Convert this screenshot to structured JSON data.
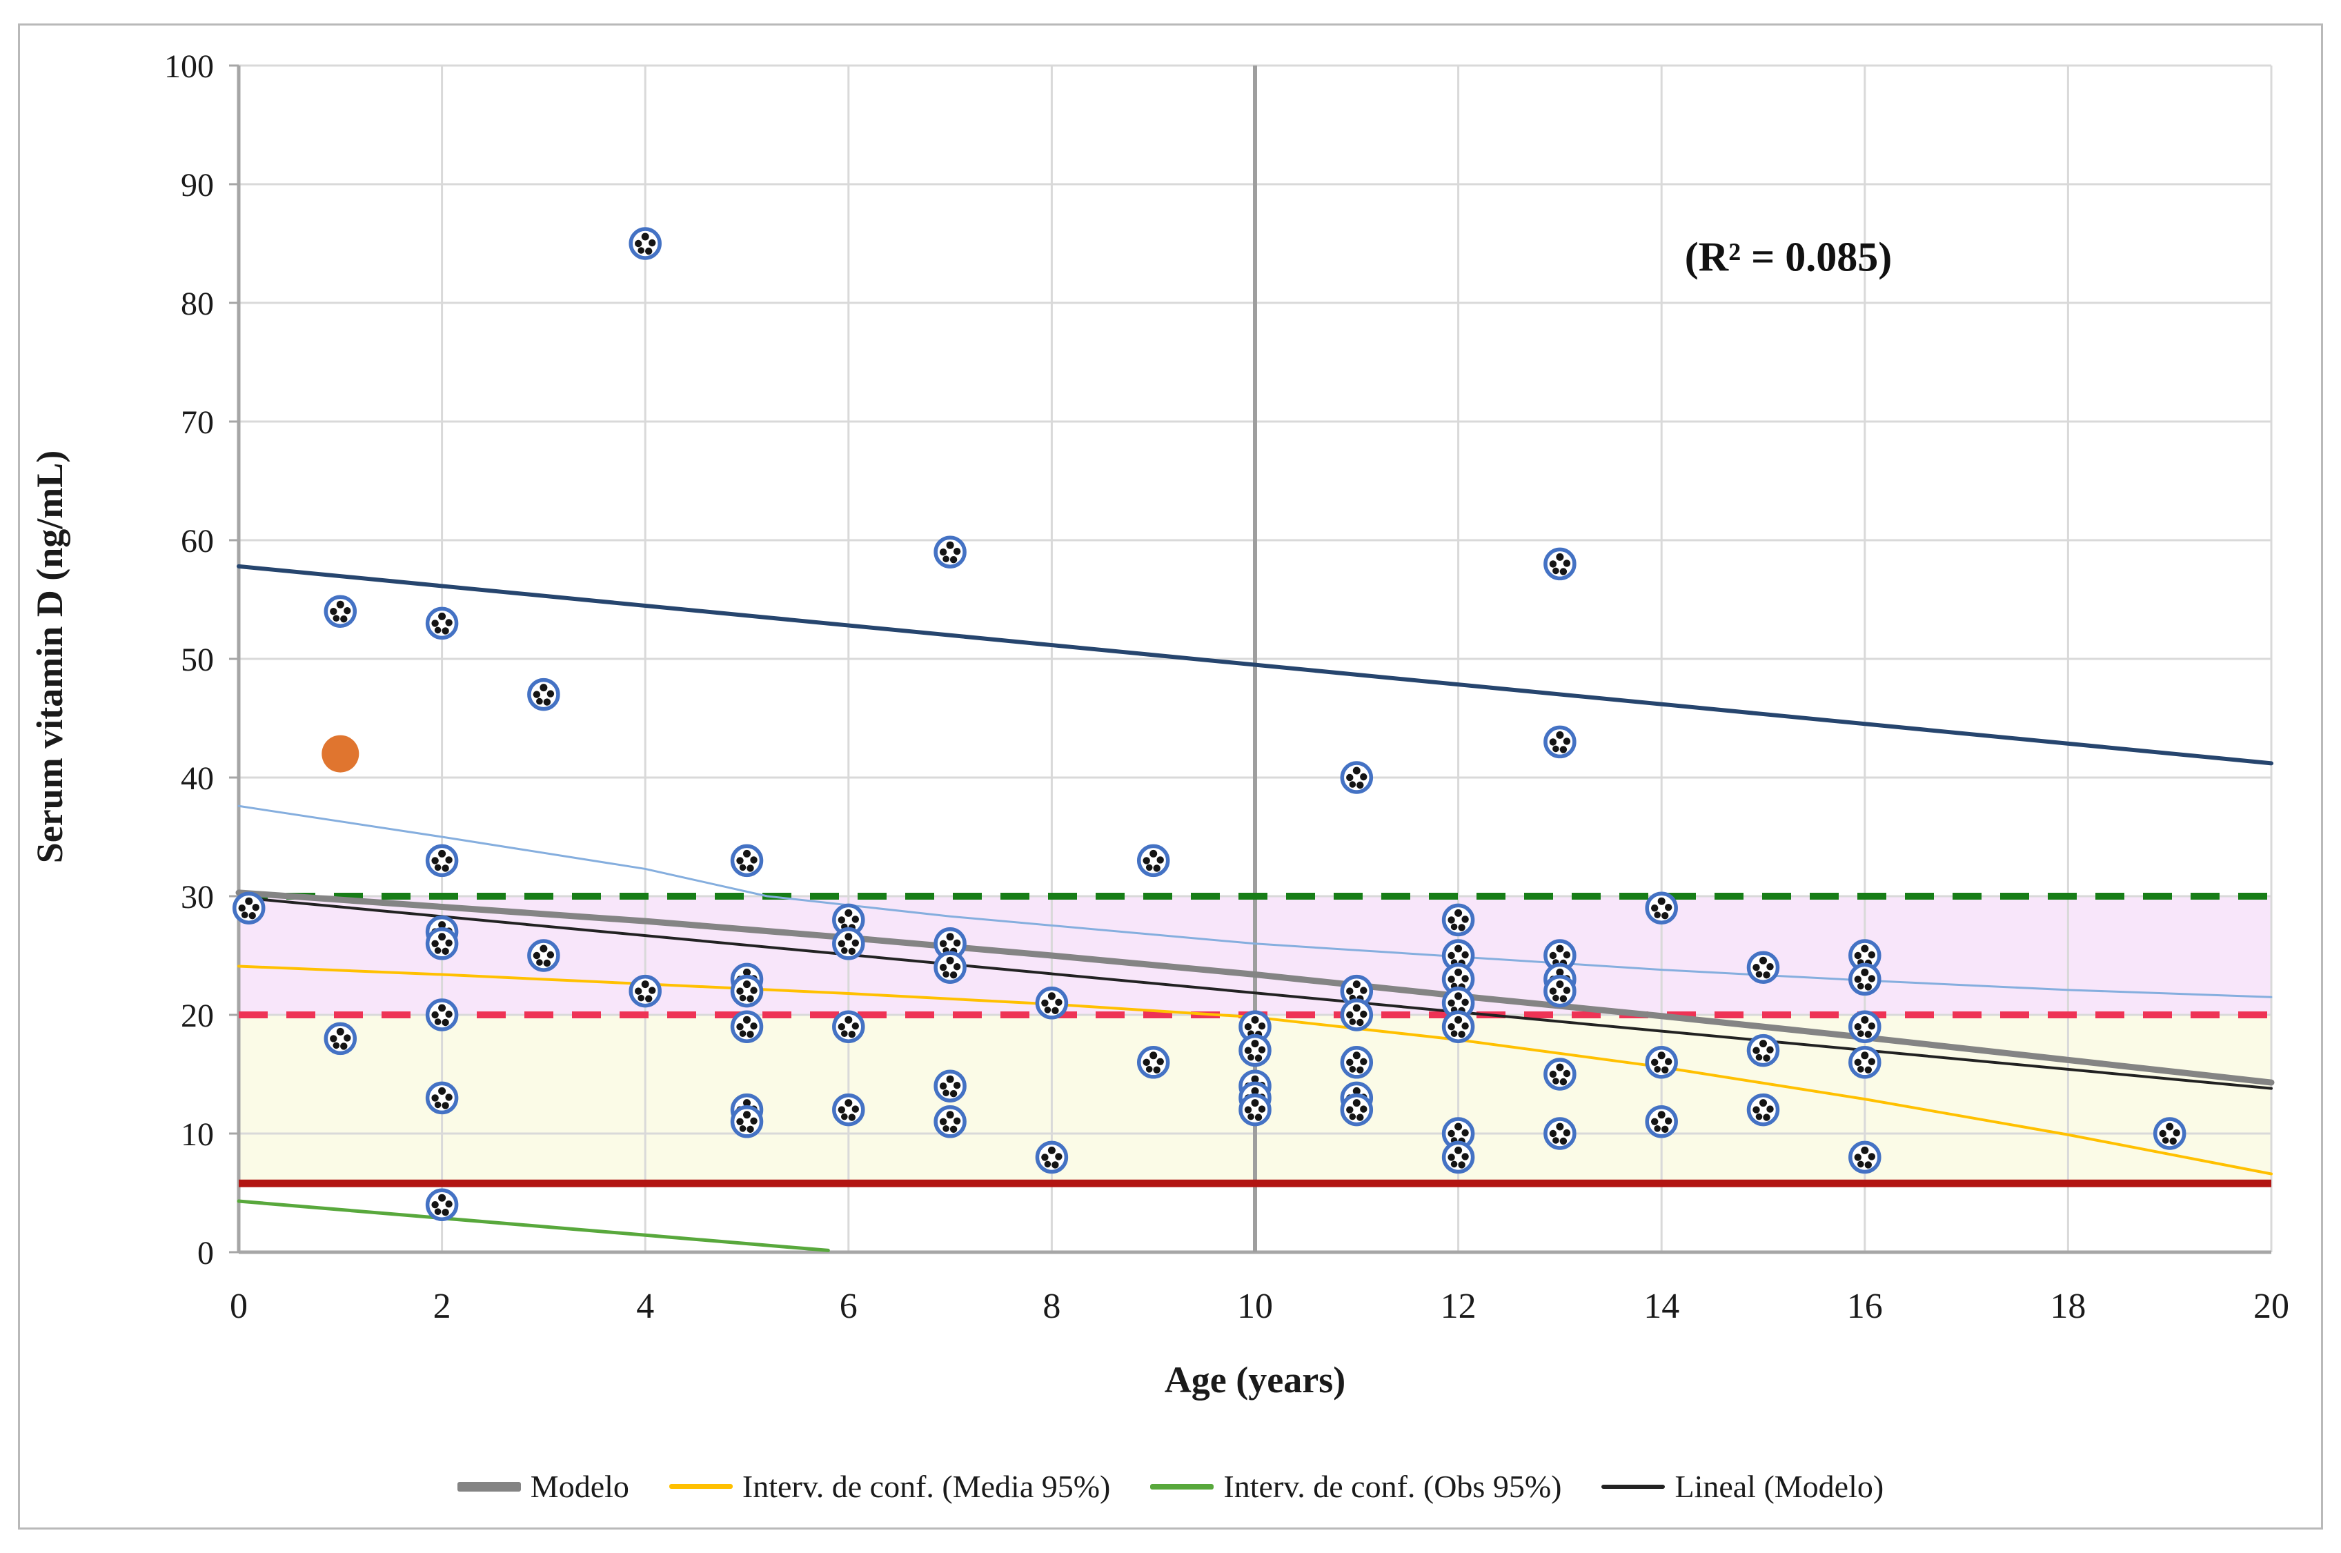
{
  "chart_data": {
    "type": "scatter",
    "title": "",
    "xlabel": "Age (years)",
    "ylabel": "Serum vitamin D (ng/mL)",
    "xlim": [
      0,
      20
    ],
    "ylim": [
      0,
      100
    ],
    "xticks": [
      0,
      2,
      4,
      6,
      8,
      10,
      12,
      14,
      16,
      18,
      20
    ],
    "yticks": [
      0,
      10,
      20,
      30,
      40,
      50,
      60,
      70,
      80,
      90,
      100
    ],
    "grid": true,
    "legend_position": "bottom",
    "annotation": {
      "text": "(R² = 0.085)",
      "x": 15.2,
      "y": 83.5
    },
    "colors": {
      "marker_ring": "#4472c4",
      "marker_dots": "#141414",
      "highlight_orange": "#e0752f",
      "band_pink": "#f8e6fa",
      "band_yellow": "#fbfbe7",
      "gridline": "#d9d9d9",
      "axis": "#a6a6a6",
      "vertical_marker": "#9e9e9e",
      "green_dashed": "#177d17",
      "red_dashed": "#ee3355",
      "dark_red_solid": "#b21512",
      "navy_line": "#26456e",
      "light_blue_line": "#85aede",
      "yellow_line": "#ffc000",
      "gray_model_line": "#848484",
      "black_linear_line": "#222222",
      "green_solid_line": "#58a83c",
      "text": "#1a1a1a"
    },
    "bands": [
      {
        "name": "insufficiency-band-pink",
        "y0": 20,
        "y1": 30,
        "color": "#f8e6fa"
      },
      {
        "name": "deficiency-band-yellow",
        "y0": 5.8,
        "y1": 20,
        "color": "#fbfbe7"
      }
    ],
    "reference_lines": [
      {
        "name": "threshold-30-green-dashed",
        "y": 30,
        "color": "#177d17",
        "width": 10,
        "dash": "42 27"
      },
      {
        "name": "threshold-20-red-dashed",
        "y": 20,
        "color": "#ee3355",
        "width": 10,
        "dash": "42 27"
      },
      {
        "name": "threshold-6-dark-red-solid",
        "y": 5.8,
        "color": "#b21512",
        "width": 11,
        "dash": null
      }
    ],
    "vertical_marker": {
      "name": "age-10-divider",
      "x": 10,
      "color": "#9e9e9e",
      "width": 6
    },
    "lines": [
      {
        "name": "obs-ci-upper-navy",
        "color": "#26456e",
        "width": 6,
        "points": [
          [
            0,
            57.8
          ],
          [
            20,
            41.2
          ]
        ]
      },
      {
        "name": "media-ci-upper-lightblue",
        "color": "#85aede",
        "width": 3,
        "points": [
          [
            0,
            37.6
          ],
          [
            2,
            35.0
          ],
          [
            4,
            32.3
          ],
          [
            5.2,
            30.0
          ],
          [
            7,
            28.3
          ],
          [
            10,
            26.0
          ],
          [
            12,
            24.9
          ],
          [
            14,
            23.8
          ],
          [
            16,
            22.9
          ],
          [
            18,
            22.1
          ],
          [
            20,
            21.5
          ]
        ]
      },
      {
        "name": "media-ci-lower-yellow",
        "color": "#ffc000",
        "width": 4,
        "points": [
          [
            0,
            24.1
          ],
          [
            2,
            23.4
          ],
          [
            4,
            22.6
          ],
          [
            6,
            21.8
          ],
          [
            8,
            20.9
          ],
          [
            10,
            19.8
          ],
          [
            12,
            17.9
          ],
          [
            14,
            15.6
          ],
          [
            16,
            12.9
          ],
          [
            18,
            9.9
          ],
          [
            20,
            6.6
          ]
        ]
      },
      {
        "name": "modelo-gray",
        "color": "#848484",
        "width": 9,
        "points": [
          [
            0,
            30.3
          ],
          [
            2,
            29.1
          ],
          [
            4,
            27.9
          ],
          [
            6,
            26.5
          ],
          [
            8,
            25.0
          ],
          [
            10,
            23.4
          ],
          [
            12,
            21.6
          ],
          [
            14,
            19.9
          ],
          [
            16,
            18.1
          ],
          [
            18,
            16.2
          ],
          [
            20,
            14.3
          ]
        ]
      },
      {
        "name": "lineal-modelo-black",
        "color": "#222222",
        "width": 4,
        "points": [
          [
            0,
            29.9
          ],
          [
            20,
            13.8
          ]
        ]
      },
      {
        "name": "obs-ci-lower-green",
        "color": "#58a83c",
        "width": 5,
        "points": [
          [
            0,
            4.3
          ],
          [
            5.8,
            0.15
          ]
        ]
      }
    ],
    "observations": [
      [
        0.1,
        29
      ],
      [
        1,
        54
      ],
      [
        1,
        18
      ],
      [
        2,
        53
      ],
      [
        2,
        33
      ],
      [
        2,
        27
      ],
      [
        2,
        26
      ],
      [
        2,
        20
      ],
      [
        2,
        13
      ],
      [
        2,
        4
      ],
      [
        3,
        47
      ],
      [
        3,
        25
      ],
      [
        4,
        85
      ],
      [
        4,
        22
      ],
      [
        5,
        33
      ],
      [
        5,
        23
      ],
      [
        5,
        22
      ],
      [
        5,
        19
      ],
      [
        5,
        12
      ],
      [
        5,
        11
      ],
      [
        6,
        28
      ],
      [
        6,
        26
      ],
      [
        6,
        19
      ],
      [
        6,
        12
      ],
      [
        7,
        59
      ],
      [
        7,
        26
      ],
      [
        7,
        24
      ],
      [
        7,
        14
      ],
      [
        7,
        11
      ],
      [
        8,
        21
      ],
      [
        8,
        8
      ],
      [
        9,
        33
      ],
      [
        9,
        16
      ],
      [
        10,
        19
      ],
      [
        10,
        17
      ],
      [
        10,
        14
      ],
      [
        10,
        13
      ],
      [
        10,
        12
      ],
      [
        11,
        40
      ],
      [
        11,
        22
      ],
      [
        11,
        20
      ],
      [
        11,
        16
      ],
      [
        11,
        13
      ],
      [
        11,
        12
      ],
      [
        12,
        28
      ],
      [
        12,
        25
      ],
      [
        12,
        23
      ],
      [
        12,
        21
      ],
      [
        12,
        19
      ],
      [
        12,
        10
      ],
      [
        12,
        8
      ],
      [
        13,
        58
      ],
      [
        13,
        43
      ],
      [
        13,
        25
      ],
      [
        13,
        23
      ],
      [
        13,
        22
      ],
      [
        13,
        15
      ],
      [
        13,
        10
      ],
      [
        14,
        29
      ],
      [
        14,
        16
      ],
      [
        14,
        11
      ],
      [
        15,
        24
      ],
      [
        15,
        17
      ],
      [
        15,
        12
      ],
      [
        16,
        25
      ],
      [
        16,
        23
      ],
      [
        16,
        19
      ],
      [
        16,
        16
      ],
      [
        16,
        8
      ],
      [
        19,
        10
      ]
    ],
    "highlight_point": {
      "x": 1,
      "y": 42,
      "color": "#e0752f"
    },
    "legend": [
      {
        "label": "Modelo",
        "color": "#848484",
        "thickness": 14
      },
      {
        "label": "Interv. de conf. (Media 95%)",
        "color": "#ffc000",
        "thickness": 7
      },
      {
        "label": "Interv. de conf. (Obs 95%)",
        "color": "#58a83c",
        "thickness": 8
      },
      {
        "label": "Lineal (Modelo)",
        "color": "#222222",
        "thickness": 6
      }
    ]
  },
  "layout_note": "scatter chart with confidence bands"
}
